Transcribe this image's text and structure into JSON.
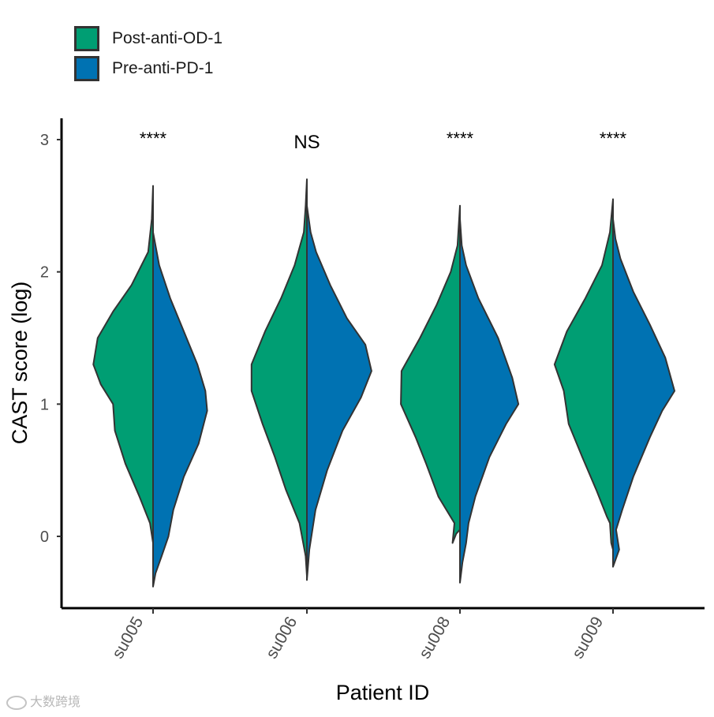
{
  "chart_data": {
    "type": "violin",
    "xlabel": "Patient ID",
    "ylabel": "CAST score (log)",
    "ylim": [
      -0.55,
      3.2
    ],
    "yticks": [
      0,
      1,
      2,
      3
    ],
    "categories": [
      "su005",
      "su006",
      "su008",
      "su009"
    ],
    "significance": [
      "****",
      "NS",
      "****",
      "****"
    ],
    "legend_position": "top-left",
    "grid": false,
    "series": [
      {
        "name": "Post-anti-OD-1",
        "side": "left",
        "color": "#009E73",
        "distributions": [
          {
            "min": -0.05,
            "max": 2.65,
            "median": 1.2
          },
          {
            "min": -0.3,
            "max": 2.7,
            "median": 1.15
          },
          {
            "min": 0.05,
            "max": 2.5,
            "median": 1.05
          },
          {
            "min": -0.1,
            "max": 2.55,
            "median": 1.1
          }
        ]
      },
      {
        "name": "Pre-anti-PD-1",
        "side": "right",
        "color": "#0072B2",
        "distributions": [
          {
            "min": -0.38,
            "max": 2.3,
            "median": 0.95
          },
          {
            "min": -0.33,
            "max": 2.5,
            "median": 1.1
          },
          {
            "min": -0.35,
            "max": 2.4,
            "median": 1.0
          },
          {
            "min": -0.23,
            "max": 2.4,
            "median": 1.0
          }
        ]
      }
    ]
  },
  "legend": {
    "items": [
      {
        "label": "Post-anti-OD-1",
        "color": "#009E73"
      },
      {
        "label": "Pre-anti-PD-1",
        "color": "#0072B2"
      }
    ]
  },
  "watermark": {
    "text": "大数跨境"
  }
}
